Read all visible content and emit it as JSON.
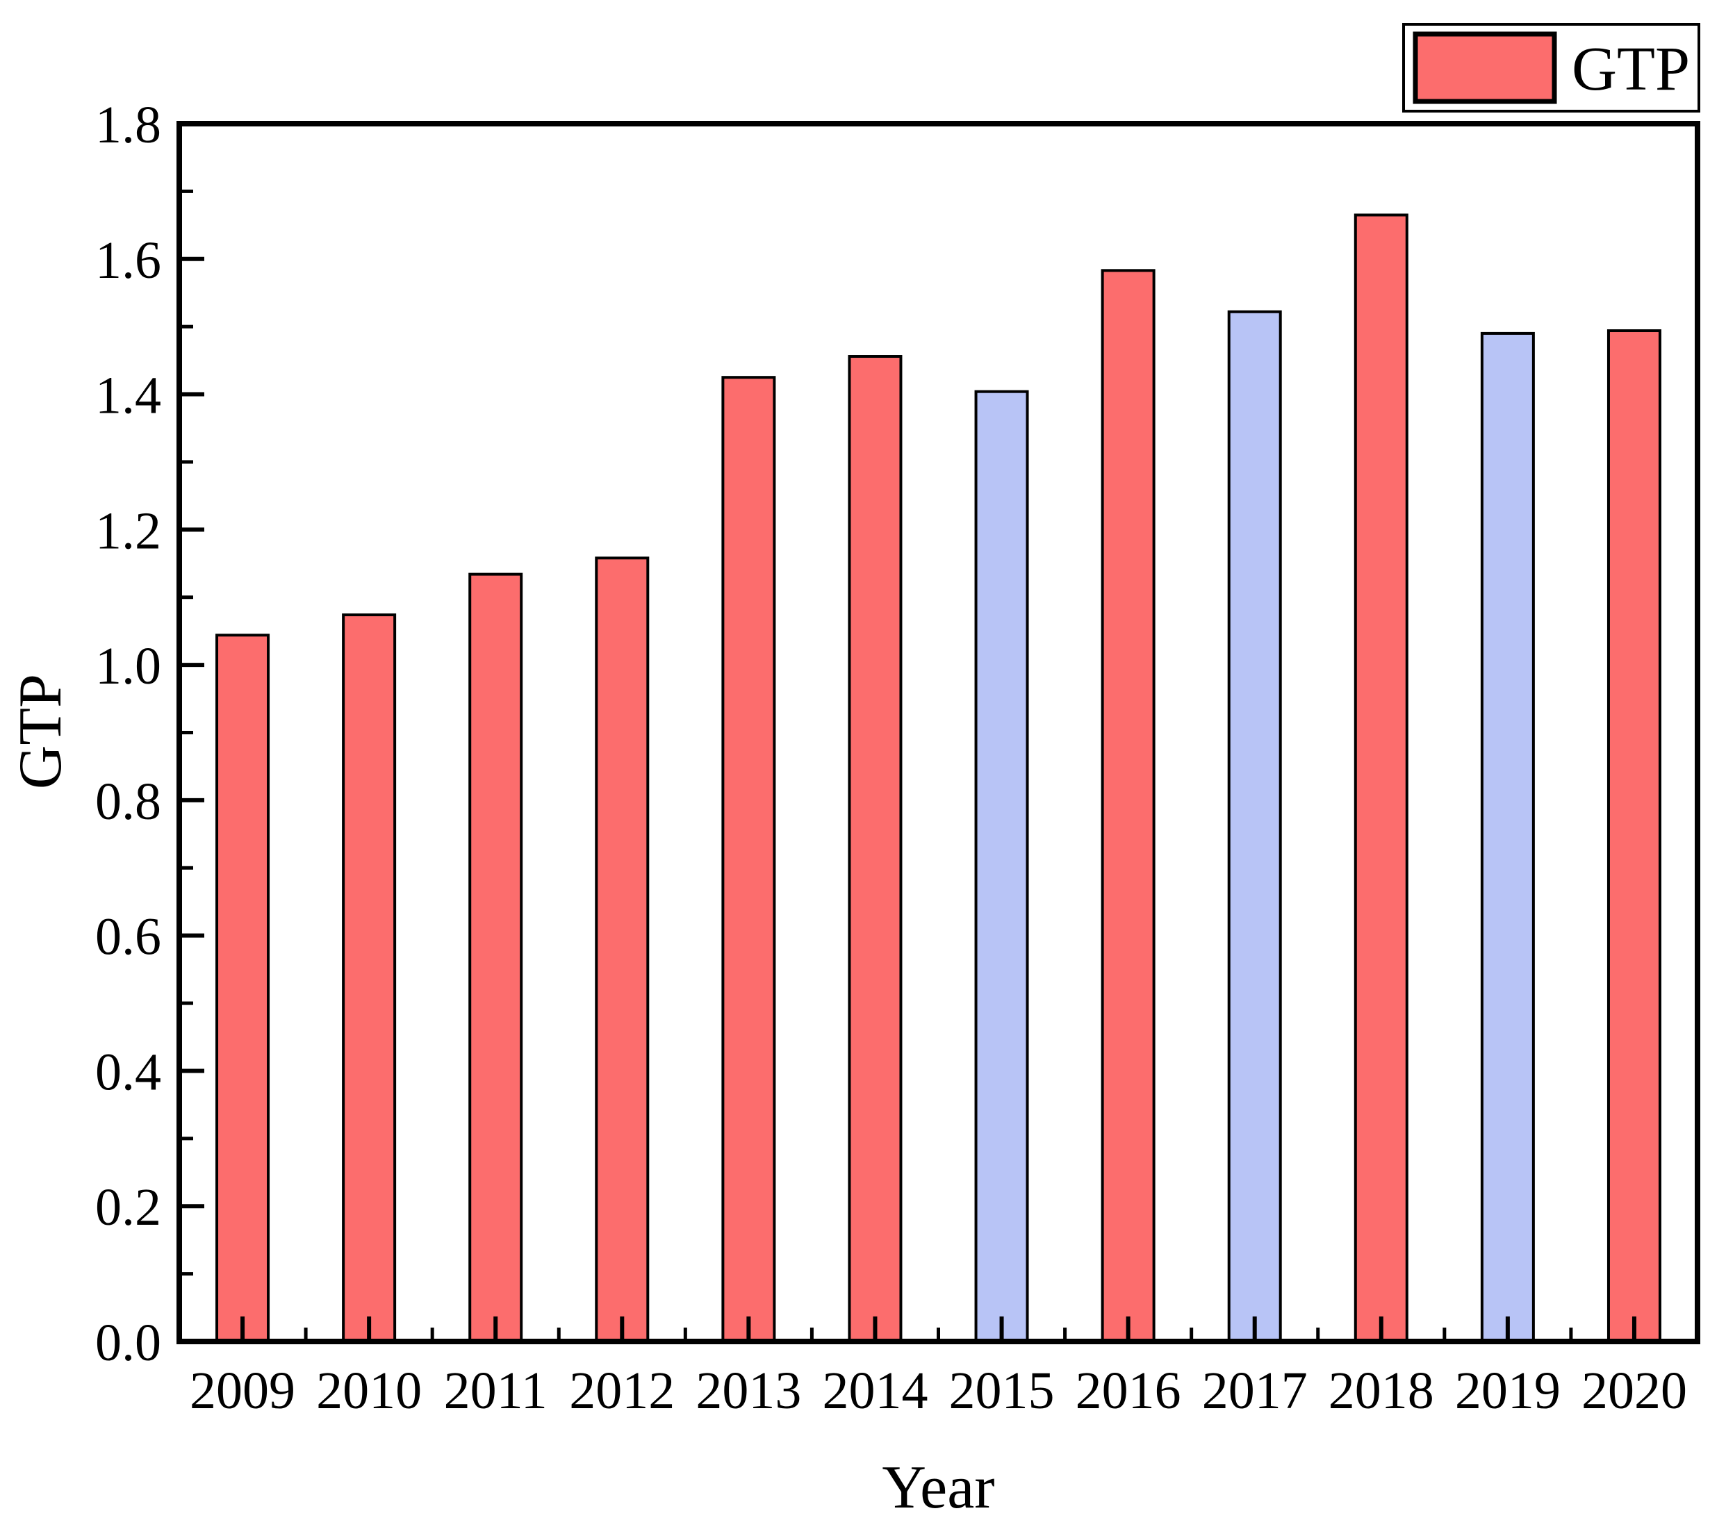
{
  "chart_data": {
    "type": "bar",
    "title": "",
    "xlabel": "Year",
    "ylabel": "GTP",
    "categories": [
      "2009",
      "2010",
      "2011",
      "2012",
      "2013",
      "2014",
      "2015",
      "2016",
      "2017",
      "2018",
      "2019",
      "2020"
    ],
    "series": [
      {
        "name": "GTP",
        "values": [
          1.044,
          1.074,
          1.134,
          1.158,
          1.425,
          1.456,
          1.404,
          1.583,
          1.522,
          1.665,
          1.49,
          1.494
        ]
      }
    ],
    "bar_colors": [
      "#fc6d6d",
      "#fc6d6d",
      "#fc6d6d",
      "#fc6d6d",
      "#fc6d6d",
      "#fc6d6d",
      "#b8c4f6",
      "#fc6d6d",
      "#b8c4f6",
      "#fc6d6d",
      "#b8c4f6",
      "#fc6d6d"
    ],
    "bar_edge_color": "#000000",
    "axis_color": "#000000",
    "background_color": "#ffffff",
    "ylim": [
      0.0,
      1.8
    ],
    "ytick_step": 0.2,
    "yminor_step": 0.1,
    "ytick_labels": [
      "0.0",
      "0.2",
      "0.4",
      "0.6",
      "0.8",
      "1.0",
      "1.2",
      "1.4",
      "1.6",
      "1.8"
    ],
    "tick_direction": "in",
    "grid": false,
    "legend": {
      "position": "top-right",
      "entries": [
        {
          "label": "GTP",
          "color": "#fc6d6d"
        }
      ]
    }
  }
}
